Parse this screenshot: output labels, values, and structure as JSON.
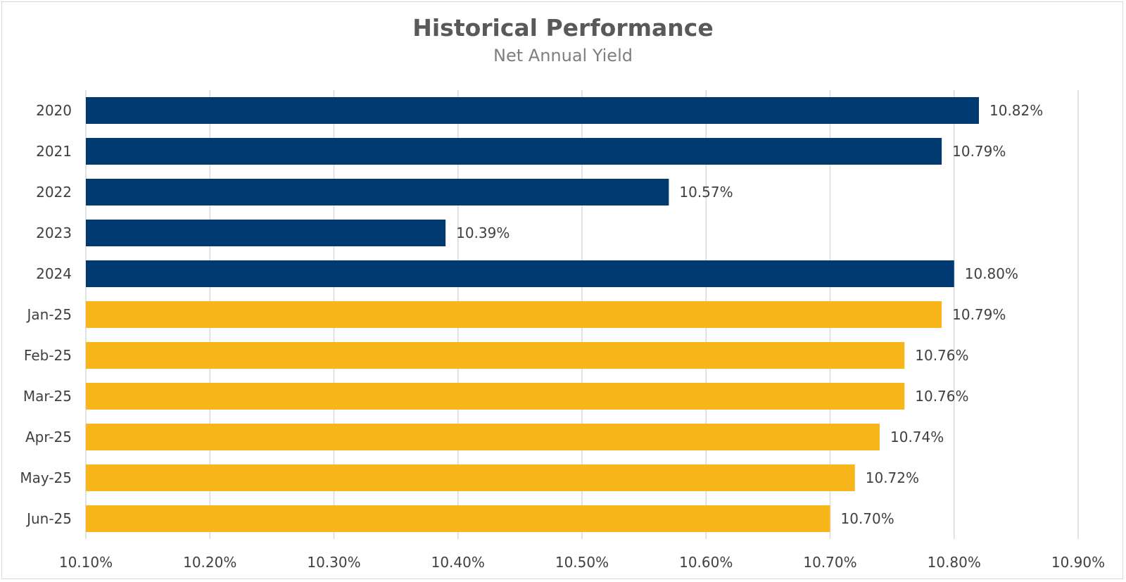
{
  "chart_data": {
    "type": "bar",
    "orientation": "horizontal",
    "title": "Historical Performance",
    "subtitle": "Net Annual Yield",
    "categories": [
      "2020",
      "2021",
      "2022",
      "2023",
      "2024",
      "Jan-25",
      "Feb-25",
      "Mar-25",
      "Apr-25",
      "May-25",
      "Jun-25"
    ],
    "values": [
      10.82,
      10.79,
      10.57,
      10.39,
      10.8,
      10.79,
      10.76,
      10.76,
      10.74,
      10.72,
      10.7
    ],
    "value_labels": [
      "10.82%",
      "10.79%",
      "10.57%",
      "10.39%",
      "10.80%",
      "10.79%",
      "10.76%",
      "10.76%",
      "10.74%",
      "10.72%",
      "10.70%"
    ],
    "bar_colors": [
      "#003a70",
      "#003a70",
      "#003a70",
      "#003a70",
      "#003a70",
      "#f9b61a",
      "#f9b61a",
      "#f9b61a",
      "#f9b61a",
      "#f9b61a",
      "#f9b61a"
    ],
    "xlim": [
      10.1,
      10.9
    ],
    "xticks": [
      10.1,
      10.2,
      10.3,
      10.4,
      10.5,
      10.6,
      10.7,
      10.8,
      10.9
    ],
    "xtick_labels": [
      "10.10%",
      "10.20%",
      "10.30%",
      "10.40%",
      "10.50%",
      "10.60%",
      "10.70%",
      "10.80%",
      "10.90%"
    ],
    "grid": true,
    "legend": "none",
    "xlabel": "",
    "ylabel": ""
  }
}
